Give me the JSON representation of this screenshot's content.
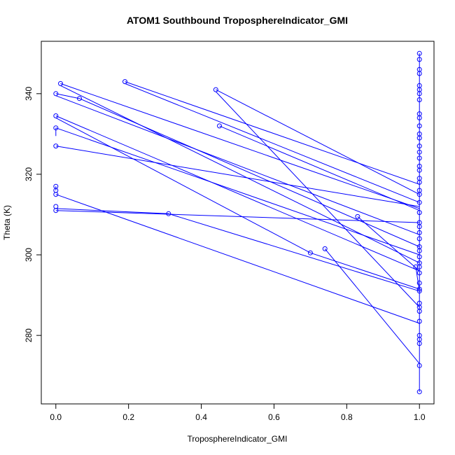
{
  "chart_data": {
    "type": "line",
    "title": "ATOM1 Southbound TroposphereIndicator_GMI",
    "xlabel": "TroposphereIndicator_GMI",
    "ylabel": "Theta (K)",
    "xlim": [
      -0.04,
      1.04
    ],
    "ylim": [
      263,
      353
    ],
    "x_ticks": [
      "0.0",
      "0.2",
      "0.4",
      "0.6",
      "0.8",
      "1.0"
    ],
    "y_ticks": [
      "280",
      "300",
      "320",
      "340"
    ],
    "line_color": "#0000ff",
    "grid": false,
    "series": [
      {
        "x": [
          0.0,
          1.0
        ],
        "y": [
          311.0,
          308.0
        ]
      },
      {
        "x": [
          0.0,
          0.31,
          1.0
        ],
        "y": [
          311.5,
          310.2,
          291.0
        ]
      },
      {
        "x": [
          0.0,
          1.0
        ],
        "y": [
          315.0,
          283.0
        ]
      },
      {
        "x": [
          0.0,
          1.0
        ],
        "y": [
          327.0,
          312.0
        ]
      },
      {
        "x": [
          0.0,
          1.0
        ],
        "y": [
          331.5,
          300.0
        ]
      },
      {
        "x": [
          0.0,
          1.0
        ],
        "y": [
          334.5,
          296.0
        ]
      },
      {
        "x": [
          0.0,
          0.7,
          1.0
        ],
        "y": [
          334.0,
          300.5,
          291.5
        ]
      },
      {
        "x": [
          0.0,
          0.065,
          1.0
        ],
        "y": [
          340.0,
          338.8,
          302.0
        ]
      },
      {
        "x": [
          0.0,
          1.0
        ],
        "y": [
          339.5,
          305.0
        ]
      },
      {
        "x": [
          0.013,
          1.0
        ],
        "y": [
          342.5,
          311.5
        ]
      },
      {
        "x": [
          0.013,
          1.0
        ],
        "y": [
          342.0,
          298.0
        ]
      },
      {
        "x": [
          0.19,
          1.0
        ],
        "y": [
          343.0,
          317.5
        ]
      },
      {
        "x": [
          0.19,
          1.0
        ],
        "y": [
          342.5,
          313.0
        ]
      },
      {
        "x": [
          0.44,
          1.0
        ],
        "y": [
          341.0,
          315.0
        ]
      },
      {
        "x": [
          0.44,
          1.0
        ],
        "y": [
          340.5,
          287.0
        ]
      },
      {
        "x": [
          0.45,
          1.0
        ],
        "y": [
          332.0,
          311.0
        ]
      },
      {
        "x": [
          0.74,
          1.0
        ],
        "y": [
          301.5,
          273.0
        ]
      },
      {
        "x": [
          0.83,
          1.0
        ],
        "y": [
          309.5,
          296.0
        ]
      },
      {
        "x": [
          0.99,
          1.0
        ],
        "y": [
          297.0,
          291.0
        ]
      },
      {
        "x": [
          0.0,
          0.0
        ],
        "y": [
          316.0,
          317.0
        ]
      },
      {
        "x": [
          0.0,
          0.0
        ],
        "y": [
          329.5,
          331.5
        ]
      }
    ],
    "points": [
      {
        "x": 0.0,
        "y": 317.0
      },
      {
        "x": 0.0,
        "y": 316.0
      },
      {
        "x": 0.0,
        "y": 315.0
      },
      {
        "x": 0.0,
        "y": 312.0
      },
      {
        "x": 0.0,
        "y": 311.0
      },
      {
        "x": 0.0,
        "y": 327.0
      },
      {
        "x": 0.0,
        "y": 331.5
      },
      {
        "x": 0.0,
        "y": 334.5
      },
      {
        "x": 0.0,
        "y": 340.0
      },
      {
        "x": 0.013,
        "y": 342.5
      },
      {
        "x": 0.065,
        "y": 338.8
      },
      {
        "x": 0.19,
        "y": 343.0
      },
      {
        "x": 0.31,
        "y": 310.2
      },
      {
        "x": 0.44,
        "y": 341.0
      },
      {
        "x": 0.45,
        "y": 332.0
      },
      {
        "x": 0.7,
        "y": 300.5
      },
      {
        "x": 0.74,
        "y": 301.5
      },
      {
        "x": 0.83,
        "y": 309.5
      },
      {
        "x": 0.99,
        "y": 297.0
      },
      {
        "x": 1.0,
        "y": 350.0
      },
      {
        "x": 1.0,
        "y": 348.5
      },
      {
        "x": 1.0,
        "y": 346.0
      },
      {
        "x": 1.0,
        "y": 345.0
      },
      {
        "x": 1.0,
        "y": 342.0
      },
      {
        "x": 1.0,
        "y": 341.0
      },
      {
        "x": 1.0,
        "y": 340.0
      },
      {
        "x": 1.0,
        "y": 338.5
      },
      {
        "x": 1.0,
        "y": 335.0
      },
      {
        "x": 1.0,
        "y": 334.0
      },
      {
        "x": 1.0,
        "y": 332.0
      },
      {
        "x": 1.0,
        "y": 330.0
      },
      {
        "x": 1.0,
        "y": 329.0
      },
      {
        "x": 1.0,
        "y": 327.0
      },
      {
        "x": 1.0,
        "y": 325.5
      },
      {
        "x": 1.0,
        "y": 324.0
      },
      {
        "x": 1.0,
        "y": 322.0
      },
      {
        "x": 1.0,
        "y": 321.0
      },
      {
        "x": 1.0,
        "y": 319.0
      },
      {
        "x": 1.0,
        "y": 318.0
      },
      {
        "x": 1.0,
        "y": 316.0
      },
      {
        "x": 1.0,
        "y": 315.0
      },
      {
        "x": 1.0,
        "y": 313.0
      },
      {
        "x": 1.0,
        "y": 310.5
      },
      {
        "x": 1.0,
        "y": 308.0
      },
      {
        "x": 1.0,
        "y": 307.0
      },
      {
        "x": 1.0,
        "y": 305.5
      },
      {
        "x": 1.0,
        "y": 304.0
      },
      {
        "x": 1.0,
        "y": 302.0
      },
      {
        "x": 1.0,
        "y": 301.0
      },
      {
        "x": 1.0,
        "y": 299.5
      },
      {
        "x": 1.0,
        "y": 298.0
      },
      {
        "x": 1.0,
        "y": 297.0
      },
      {
        "x": 1.0,
        "y": 295.5
      },
      {
        "x": 1.0,
        "y": 293.0
      },
      {
        "x": 1.0,
        "y": 291.5
      },
      {
        "x": 1.0,
        "y": 291.0
      },
      {
        "x": 1.0,
        "y": 288.0
      },
      {
        "x": 1.0,
        "y": 287.0
      },
      {
        "x": 1.0,
        "y": 286.0
      },
      {
        "x": 1.0,
        "y": 283.5
      },
      {
        "x": 1.0,
        "y": 280.0
      },
      {
        "x": 1.0,
        "y": 279.0
      },
      {
        "x": 1.0,
        "y": 278.0
      },
      {
        "x": 1.0,
        "y": 272.5
      },
      {
        "x": 1.0,
        "y": 266.0
      }
    ],
    "vertical_series": {
      "x": 1.0,
      "y_range": [
        266.0,
        350.0
      ]
    }
  }
}
